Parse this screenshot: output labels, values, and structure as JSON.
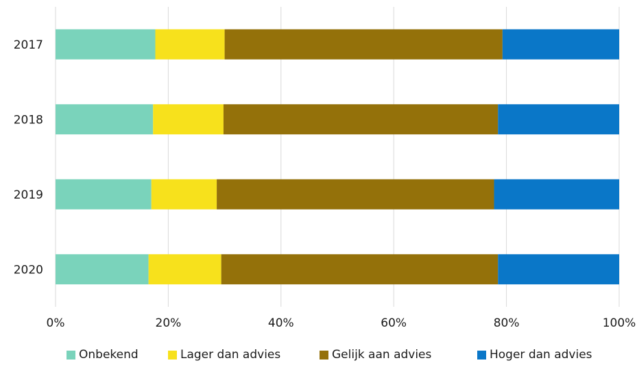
{
  "chart_data": {
    "type": "bar",
    "orientation": "horizontal",
    "stacked": true,
    "categories": [
      "2017",
      "2018",
      "2019",
      "2020"
    ],
    "series": [
      {
        "name": "Onbekend",
        "color": "#7ad3bb",
        "values": [
          17.7,
          17.3,
          17.0,
          16.5
        ]
      },
      {
        "name": "Lager dan advies",
        "color": "#f7e11c",
        "values": [
          12.3,
          12.5,
          11.6,
          12.9
        ]
      },
      {
        "name": "Gelijk aan advies",
        "color": "#94710a",
        "values": [
          49.3,
          48.7,
          49.2,
          49.1
        ]
      },
      {
        "name": "Hoger dan advies",
        "color": "#0a77c8",
        "values": [
          20.7,
          21.5,
          22.2,
          21.5
        ]
      }
    ],
    "xlim": [
      0,
      100
    ],
    "x_ticks": [
      "0%",
      "20%",
      "40%",
      "60%",
      "80%",
      "100%"
    ],
    "grid": true,
    "legend_position": "bottom"
  }
}
